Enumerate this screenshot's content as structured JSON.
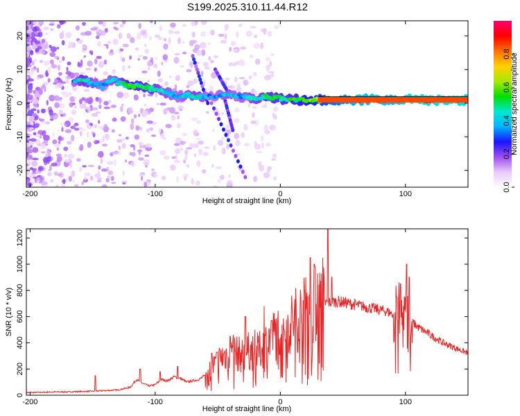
{
  "title": "S199.2025.310.11.44.R12",
  "chart_data": [
    {
      "type": "heatmap",
      "name": "spectrogram",
      "xlabel": "Height of straight line (km)",
      "ylabel": "Frequency (Hz)",
      "xlim": [
        -203,
        150
      ],
      "ylim": [
        -25,
        24.5
      ],
      "xticks": [
        -200,
        -100,
        0,
        100
      ],
      "yticks": [
        -20,
        -10,
        0,
        10,
        20
      ],
      "colorbar": {
        "label": "Normalized spectral amplitude",
        "range": [
          0.0,
          1.0
        ],
        "ticks": [
          "0.0",
          "0.2",
          "0.4",
          "0.6",
          "0.8"
        ],
        "colors": [
          "#ffffff",
          "#e9c9f8",
          "#a04cf2",
          "#1a14ff",
          "#00b4ff",
          "#00e8d0",
          "#00e000",
          "#a8e800",
          "#ffd000",
          "#ff7000",
          "#ff0000",
          "#ff0070"
        ]
      },
      "ridge": [
        [
          -165,
          6,
          0.35
        ],
        [
          -158,
          7,
          0.5
        ],
        [
          -150,
          6,
          0.4
        ],
        [
          -142,
          5,
          0.35
        ],
        [
          -135,
          7,
          0.4
        ],
        [
          -128,
          6,
          0.45
        ],
        [
          -120,
          5,
          0.55
        ],
        [
          -112,
          5,
          0.5
        ],
        [
          -105,
          4.5,
          0.5
        ],
        [
          -98,
          4,
          0.45
        ],
        [
          -90,
          3,
          0.4
        ],
        [
          -82,
          2,
          0.35
        ],
        [
          -75,
          2.5,
          0.4
        ],
        [
          -66,
          2,
          0.45
        ],
        [
          -58,
          2,
          0.35
        ],
        [
          -50,
          2.5,
          0.35
        ],
        [
          -42,
          3,
          0.4
        ],
        [
          -34,
          2,
          0.35
        ],
        [
          -26,
          1.5,
          0.4
        ],
        [
          -18,
          1.5,
          0.45
        ],
        [
          -10,
          2,
          0.5
        ],
        [
          -2,
          1.5,
          0.5
        ],
        [
          6,
          1,
          0.5
        ],
        [
          14,
          1,
          0.55
        ],
        [
          22,
          1,
          0.6
        ],
        [
          30,
          1,
          0.65
        ],
        [
          40,
          1,
          0.7
        ],
        [
          50,
          1,
          0.75
        ],
        [
          60,
          1,
          0.8
        ],
        [
          70,
          1,
          0.85
        ],
        [
          80,
          1,
          0.85
        ],
        [
          90,
          1,
          0.8
        ],
        [
          100,
          1,
          0.9
        ],
        [
          110,
          1,
          0.95
        ],
        [
          120,
          1,
          0.95
        ],
        [
          130,
          1,
          0.95
        ],
        [
          140,
          1,
          0.95
        ],
        [
          150,
          1,
          0.95
        ]
      ]
    },
    {
      "type": "line",
      "name": "snr",
      "xlabel": "Height of straight line (km)",
      "ylabel": "SNR (10 * v/v)",
      "xlim": [
        -203,
        150
      ],
      "ylim": [
        0,
        1270
      ],
      "xticks": [
        -200,
        -100,
        0,
        100
      ],
      "yticks": [
        0,
        200,
        400,
        600,
        800,
        1000,
        1200
      ],
      "color": "#ee2222",
      "series": [
        {
          "name": "SNR",
          "x": [
            -203,
            -190,
            -180,
            -170,
            -160,
            -150,
            -140,
            -130,
            -120,
            -115,
            -110,
            -105,
            -100,
            -95,
            -90,
            -85,
            -80,
            -75,
            -70,
            -65,
            -60,
            -55,
            -50,
            -45,
            -40,
            -35,
            -30,
            -25,
            -20,
            -15,
            -10,
            -5,
            0,
            5,
            10,
            15,
            20,
            25,
            30,
            35,
            40,
            45,
            50,
            55,
            60,
            65,
            70,
            75,
            80,
            85,
            90,
            95,
            100,
            105,
            110,
            115,
            120,
            125,
            130,
            135,
            140,
            145,
            150
          ],
          "y": [
            20,
            22,
            25,
            25,
            28,
            30,
            35,
            40,
            60,
            120,
            90,
            70,
            80,
            120,
            110,
            140,
            130,
            100,
            110,
            120,
            150,
            200,
            260,
            300,
            330,
            320,
            300,
            340,
            320,
            350,
            420,
            460,
            500,
            520,
            560,
            600,
            640,
            680,
            700,
            700,
            710,
            715,
            710,
            700,
            690,
            680,
            670,
            660,
            650,
            640,
            620,
            600,
            590,
            560,
            520,
            490,
            460,
            430,
            400,
            380,
            360,
            340,
            320
          ]
        }
      ],
      "peaks": [
        [
          -148,
          150
        ],
        [
          -112,
          200
        ],
        [
          -96,
          180
        ],
        [
          -82,
          220
        ],
        [
          -55,
          320
        ],
        [
          -40,
          450
        ],
        [
          -28,
          600
        ],
        [
          -20,
          500
        ],
        [
          -13,
          680
        ],
        [
          -7,
          570
        ],
        [
          3,
          500
        ],
        [
          10,
          560
        ],
        [
          20,
          900
        ],
        [
          24,
          1050
        ],
        [
          27,
          1000
        ],
        [
          30,
          930
        ],
        [
          34,
          1050
        ],
        [
          38,
          1270
        ],
        [
          41,
          900
        ],
        [
          93,
          750
        ],
        [
          96,
          850
        ],
        [
          101,
          1000
        ],
        [
          103,
          900
        ]
      ]
    }
  ]
}
